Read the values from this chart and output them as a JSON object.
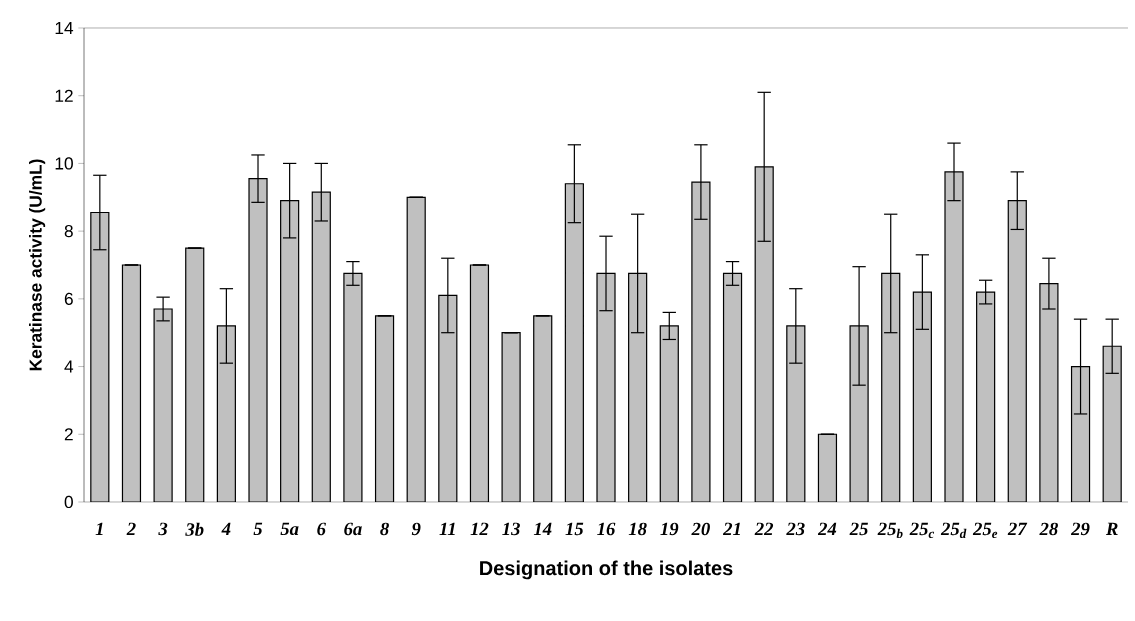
{
  "chart_data": {
    "type": "bar",
    "xlabel": "Designation of the isolates",
    "ylabel": "Keratinase activity (U/mL)",
    "categories": [
      "1",
      "2",
      "3",
      "3b",
      "4",
      "5",
      "5a",
      "6",
      "6a",
      "8",
      "9",
      "11",
      "12",
      "13",
      "14",
      "15",
      "16",
      "18",
      "19",
      "20",
      "21",
      "22",
      "23",
      "24",
      "25",
      "25$_{b}$",
      "25$_{c}$",
      "25$_{d}$",
      "25$_{e}$",
      "27",
      "28",
      "29",
      "R"
    ],
    "values": [
      8.55,
      7.0,
      5.7,
      7.5,
      5.2,
      9.55,
      8.9,
      9.15,
      6.75,
      5.5,
      9.0,
      6.1,
      7.0,
      5.0,
      5.5,
      9.4,
      6.75,
      6.75,
      5.2,
      9.45,
      6.75,
      9.9,
      5.2,
      2.0,
      5.2,
      6.75,
      6.2,
      9.75,
      6.2,
      8.9,
      6.45,
      4.0,
      4.6
    ],
    "errors": [
      1.1,
      null,
      0.35,
      null,
      1.1,
      0.7,
      1.1,
      0.85,
      0.35,
      null,
      null,
      1.1,
      null,
      null,
      null,
      1.15,
      1.1,
      1.75,
      0.4,
      1.1,
      0.35,
      2.2,
      1.1,
      null,
      1.75,
      1.75,
      1.1,
      0.85,
      0.35,
      0.85,
      0.75,
      1.4,
      0.8
    ],
    "color": "#c0c0c0",
    "ylim": [
      0,
      14
    ],
    "yticks": [
      0,
      2,
      4,
      6,
      8,
      10,
      12,
      14
    ],
    "grid": false
  }
}
